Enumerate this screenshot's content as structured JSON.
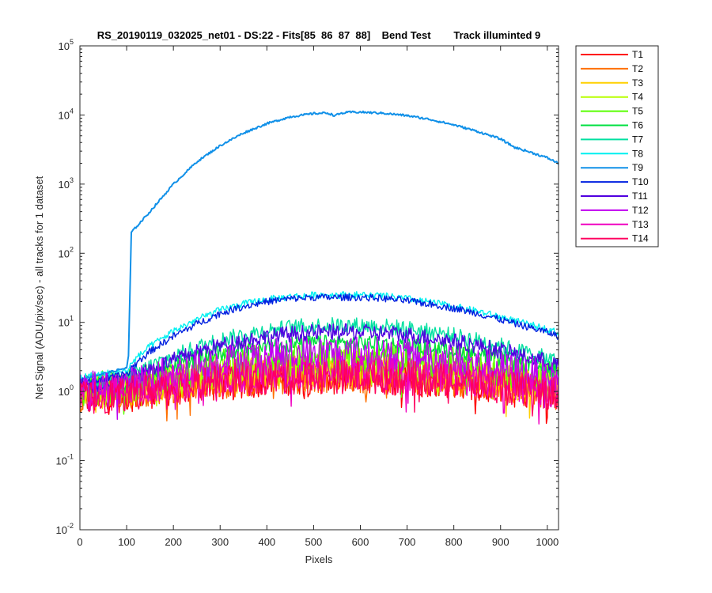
{
  "chart_data": {
    "type": "line",
    "title": "RS_20190119_032025_net01 - DS:22 - Fits[85  86  87  88]    Bend Test        Track illuminted 9",
    "xlabel": "Pixels",
    "ylabel": "Net Signal (ADU/pix/sec) - all tracks for 1 dataset",
    "xlim": [
      0,
      1024
    ],
    "ylim": [
      0.01,
      100000
    ],
    "yscale": "log",
    "x_ticks": [
      "0",
      "100",
      "200",
      "300",
      "400",
      "500",
      "600",
      "700",
      "800",
      "900",
      "1000"
    ],
    "y_ticks": [
      {
        "base": "10",
        "exp": "-2"
      },
      {
        "base": "10",
        "exp": "-1"
      },
      {
        "base": "10",
        "exp": "0"
      },
      {
        "base": "10",
        "exp": "1"
      },
      {
        "base": "10",
        "exp": "2"
      },
      {
        "base": "10",
        "exp": "3"
      },
      {
        "base": "10",
        "exp": "4"
      },
      {
        "base": "10",
        "exp": "5"
      }
    ],
    "legend_position": "outside-right-top",
    "x": [
      0,
      50,
      100,
      104,
      110,
      150,
      200,
      250,
      300,
      350,
      400,
      450,
      500,
      530,
      545,
      560,
      580,
      600,
      650,
      700,
      750,
      800,
      850,
      900,
      930,
      950,
      1000,
      1024
    ],
    "series": [
      {
        "name": "T1",
        "color": "#ff0000",
        "values": [
          0.8,
          0.8,
          0.9,
          0.9,
          0.9,
          1.0,
          1.1,
          1.2,
          1.3,
          1.4,
          1.5,
          1.55,
          1.6,
          1.6,
          1.6,
          1.6,
          1.6,
          1.6,
          1.55,
          1.5,
          1.45,
          1.4,
          1.3,
          1.2,
          1.1,
          1.05,
          1.0,
          0.9
        ]
      },
      {
        "name": "T2",
        "color": "#ff7000",
        "values": [
          0.9,
          0.9,
          1.0,
          1.0,
          1.0,
          1.1,
          1.2,
          1.3,
          1.4,
          1.5,
          1.6,
          1.65,
          1.7,
          1.7,
          1.7,
          1.7,
          1.7,
          1.7,
          1.65,
          1.6,
          1.55,
          1.5,
          1.4,
          1.3,
          1.2,
          1.1,
          1.0,
          0.95
        ]
      },
      {
        "name": "T3",
        "color": "#ffd000",
        "values": [
          1.0,
          1.0,
          1.05,
          1.05,
          1.1,
          1.2,
          1.35,
          1.5,
          1.6,
          1.75,
          1.85,
          1.9,
          1.95,
          2.0,
          2.0,
          2.0,
          2.0,
          2.0,
          1.95,
          1.9,
          1.8,
          1.7,
          1.6,
          1.45,
          1.35,
          1.3,
          1.2,
          1.1
        ]
      },
      {
        "name": "T4",
        "color": "#b8ff00",
        "values": [
          1.0,
          1.05,
          1.1,
          1.1,
          1.15,
          1.3,
          1.5,
          1.7,
          1.9,
          2.05,
          2.2,
          2.3,
          2.35,
          2.4,
          2.4,
          2.4,
          2.4,
          2.4,
          2.35,
          2.3,
          2.2,
          2.05,
          1.9,
          1.7,
          1.6,
          1.5,
          1.35,
          1.25
        ]
      },
      {
        "name": "T5",
        "color": "#58ff00",
        "values": [
          1.1,
          1.15,
          1.2,
          1.2,
          1.3,
          1.5,
          1.8,
          2.1,
          2.4,
          2.7,
          2.9,
          3.0,
          3.1,
          3.1,
          3.1,
          3.1,
          3.1,
          3.1,
          3.05,
          2.9,
          2.75,
          2.55,
          2.3,
          2.05,
          1.9,
          1.8,
          1.6,
          1.45
        ]
      },
      {
        "name": "T6",
        "color": "#00e040",
        "values": [
          1.2,
          1.3,
          1.4,
          1.4,
          1.5,
          1.9,
          2.4,
          3.0,
          3.6,
          4.1,
          4.5,
          4.8,
          5.0,
          5.0,
          5.0,
          5.0,
          5.0,
          5.0,
          4.9,
          4.6,
          4.3,
          3.9,
          3.5,
          3.0,
          2.7,
          2.5,
          2.2,
          2.0
        ]
      },
      {
        "name": "T7",
        "color": "#00e0a0",
        "values": [
          1.3,
          1.4,
          1.5,
          1.5,
          1.7,
          2.3,
          3.2,
          4.3,
          5.5,
          6.6,
          7.6,
          8.4,
          8.9,
          9.0,
          9.0,
          9.0,
          9.0,
          9.0,
          8.7,
          8.1,
          7.3,
          6.4,
          5.5,
          4.6,
          4.0,
          3.7,
          3.0,
          2.7
        ]
      },
      {
        "name": "T8",
        "color": "#00f0f0",
        "values": [
          1.6,
          1.8,
          2.0,
          2.0,
          2.6,
          4.5,
          7.5,
          11.0,
          15.0,
          18.5,
          21.5,
          23.5,
          24.8,
          25.0,
          25.0,
          25.0,
          25.0,
          25.0,
          24.0,
          22.0,
          19.5,
          17.0,
          14.5,
          12.0,
          10.5,
          9.7,
          8.0,
          7.0
        ]
      },
      {
        "name": "T9",
        "color": "#1090e8",
        "values": [
          1.5,
          1.8,
          2.2,
          3.2,
          200,
          400,
          1000,
          2100,
          3600,
          5500,
          7500,
          9400,
          10500,
          10700,
          9800,
          10600,
          11000,
          11000,
          10600,
          9800,
          8600,
          7200,
          5800,
          4500,
          3400,
          3100,
          2400,
          2000
        ]
      },
      {
        "name": "T10",
        "color": "#0020e0",
        "values": [
          1.3,
          1.5,
          1.8,
          1.8,
          2.2,
          3.8,
          6.3,
          9.5,
          13.5,
          17.0,
          20.0,
          22.0,
          23.0,
          23.0,
          23.0,
          23.0,
          23.0,
          23.0,
          22.2,
          20.5,
          18.3,
          16.0,
          13.5,
          11.0,
          9.6,
          8.9,
          7.2,
          6.3
        ]
      },
      {
        "name": "T11",
        "color": "#5000e0",
        "values": [
          1.2,
          1.3,
          1.45,
          1.45,
          1.6,
          2.1,
          2.8,
          3.7,
          4.6,
          5.5,
          6.2,
          6.8,
          7.1,
          7.2,
          7.2,
          7.2,
          7.2,
          7.2,
          7.0,
          6.6,
          6.0,
          5.3,
          4.6,
          3.9,
          3.5,
          3.2,
          2.7,
          2.4
        ]
      },
      {
        "name": "T12",
        "color": "#c000f0",
        "values": [
          1.1,
          1.15,
          1.2,
          1.2,
          1.3,
          1.55,
          1.9,
          2.3,
          2.65,
          3.0,
          3.3,
          3.45,
          3.55,
          3.6,
          3.6,
          3.6,
          3.6,
          3.6,
          3.5,
          3.3,
          3.05,
          2.75,
          2.45,
          2.15,
          1.95,
          1.85,
          1.6,
          1.45
        ]
      },
      {
        "name": "T13",
        "color": "#f000c0",
        "values": [
          0.9,
          0.95,
          1.0,
          1.0,
          1.05,
          1.2,
          1.35,
          1.5,
          1.6,
          1.7,
          1.8,
          1.85,
          1.9,
          1.9,
          1.9,
          1.9,
          1.9,
          1.9,
          1.85,
          1.8,
          1.7,
          1.6,
          1.5,
          1.35,
          1.25,
          1.2,
          1.1,
          1.0
        ]
      },
      {
        "name": "T14",
        "color": "#ff0060",
        "values": [
          0.8,
          0.85,
          0.9,
          0.9,
          0.95,
          1.05,
          1.2,
          1.3,
          1.4,
          1.5,
          1.55,
          1.6,
          1.65,
          1.65,
          1.65,
          1.65,
          1.65,
          1.65,
          1.6,
          1.55,
          1.5,
          1.4,
          1.3,
          1.2,
          1.1,
          1.05,
          0.95,
          0.9
        ]
      }
    ],
    "grid": false
  }
}
